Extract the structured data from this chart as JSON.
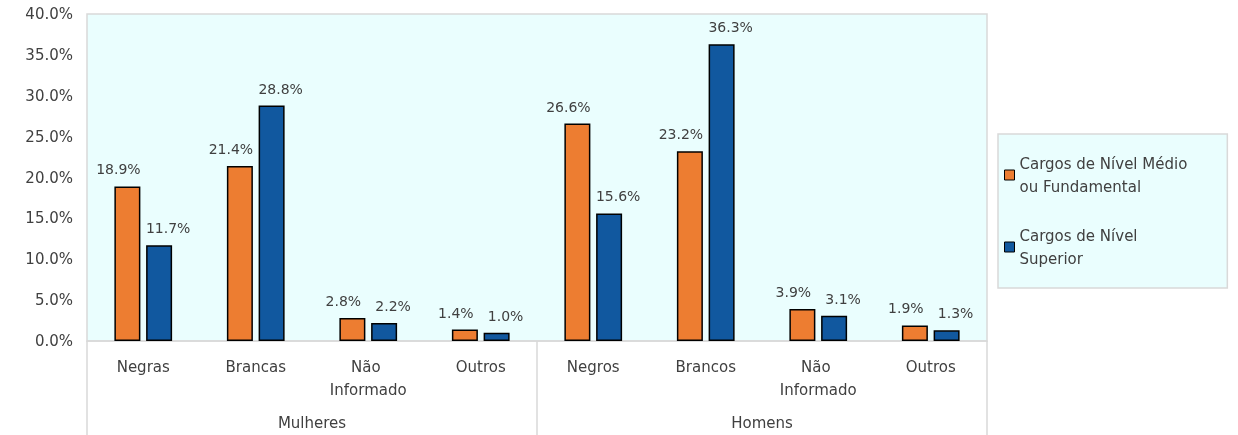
{
  "chart_data": {
    "type": "bar",
    "categories": [
      "Negras",
      "Brancas",
      "Não Informado",
      "Outros",
      "Negros",
      "Brancos",
      "Não Informado",
      "Outros"
    ],
    "series": [
      {
        "name": "Cargos de Nível Médio ou Fundamental",
        "color": "#ed7d31",
        "values": [
          18.9,
          21.4,
          2.8,
          1.4,
          26.6,
          23.2,
          3.9,
          1.9
        ],
        "value_labels": [
          "18.9%",
          "21.4%",
          "2.8%",
          "1.4%",
          "26.6%",
          "23.2%",
          "3.9%",
          "1.9%"
        ]
      },
      {
        "name": "Cargos de Nível Superior",
        "color": "#11589f",
        "values": [
          11.7,
          28.8,
          2.2,
          1.0,
          15.6,
          36.3,
          3.1,
          1.3
        ],
        "value_labels": [
          "11.7%",
          "28.8%",
          "2.2%",
          "1.0%",
          "15.6%",
          "36.3%",
          "3.1%",
          "1.3%"
        ]
      }
    ],
    "ylim": [
      0,
      40
    ],
    "yticks": [
      {
        "value": 0,
        "label": "0.0%"
      },
      {
        "value": 5,
        "label": "5.0%"
      },
      {
        "value": 10,
        "label": "10.0%"
      },
      {
        "value": 15,
        "label": "15.0%"
      },
      {
        "value": 20,
        "label": "20.0%"
      },
      {
        "value": 25,
        "label": "25.0%"
      },
      {
        "value": 30,
        "label": "30.0%"
      },
      {
        "value": 35,
        "label": "35.0%"
      },
      {
        "value": 40,
        "label": "40.0%"
      }
    ],
    "grid": false,
    "legend": "right",
    "annotations": [
      "Mulheres",
      "Homens"
    ]
  }
}
